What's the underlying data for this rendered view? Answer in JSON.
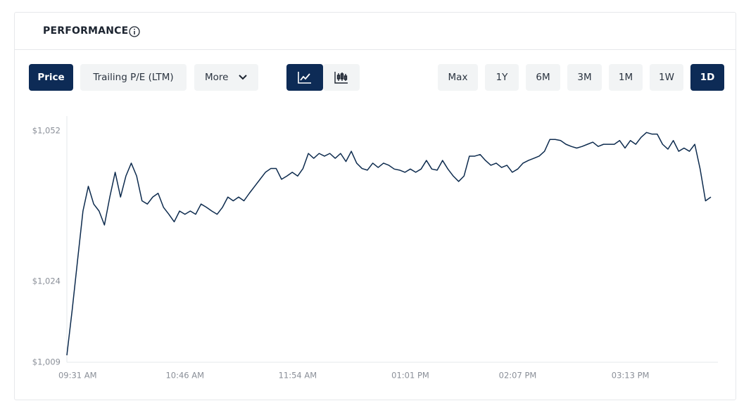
{
  "header": {
    "title": "PERFORMANCE"
  },
  "buttons": [
    "Price",
    "Trailing P/E (LTM)",
    "More"
  ],
  "ranges": [
    "Max",
    "1Y",
    "6M",
    "3M",
    "1M",
    "1W",
    "1D"
  ],
  "chart_data": {
    "type": "line",
    "color": "#0d2b4e",
    "ylim": [
      1009,
      1052
    ],
    "yticks": [
      {
        "value": 1052,
        "label": "$1,052"
      },
      {
        "value": 1024,
        "label": "$1,024"
      },
      {
        "value": 1009,
        "label": "$1,009"
      }
    ],
    "categories": [
      null,
      null,
      "09:31 AM",
      null,
      null,
      null,
      null,
      null,
      null,
      null,
      null,
      null,
      null,
      null,
      null,
      null,
      null,
      null,
      null,
      null,
      null,
      null,
      "10:46 AM",
      null,
      null,
      null,
      null,
      null,
      null,
      null,
      null,
      null,
      null,
      null,
      null,
      null,
      null,
      null,
      null,
      null,
      null,
      null,
      null,
      "11:54 AM",
      null,
      null,
      null,
      null,
      null,
      null,
      null,
      null,
      null,
      null,
      null,
      null,
      null,
      null,
      null,
      null,
      null,
      null,
      null,
      null,
      "01:01 PM",
      null,
      null,
      null,
      null,
      null,
      null,
      null,
      null,
      null,
      null,
      null,
      null,
      null,
      null,
      null,
      null,
      null,
      null,
      null,
      "02:07 PM",
      null,
      null,
      null,
      null,
      null,
      null,
      null,
      null,
      null,
      null,
      null,
      null,
      null,
      null,
      null,
      null,
      null,
      null,
      null,
      null,
      "03:13 PM",
      null,
      null,
      null,
      null,
      null,
      null,
      null,
      null,
      null,
      null,
      null,
      null,
      null,
      null,
      null
    ],
    "values": [
      1010.3,
      1018.8,
      1028,
      1037.1,
      1041.7,
      1038.4,
      1037.1,
      1034.5,
      1039.7,
      1044.3,
      1039.7,
      1043.6,
      1046,
      1043.6,
      1039,
      1038.4,
      1039.7,
      1040.4,
      1037.8,
      1036.5,
      1035.1,
      1037.1,
      1036.5,
      1037.1,
      1036.5,
      1038.4,
      1037.8,
      1037.1,
      1036.5,
      1037.8,
      1039.7,
      1039,
      1039.7,
      1039,
      1040.4,
      1041.7,
      1043,
      1044.3,
      1045,
      1045,
      1043,
      1043.6,
      1044.3,
      1043.6,
      1045,
      1047.8,
      1046.9,
      1047.8,
      1047.3,
      1047.8,
      1046.9,
      1047.8,
      1046.3,
      1048.2,
      1046,
      1045,
      1044.7,
      1046,
      1045.2,
      1046,
      1045.6,
      1044.9,
      1044.7,
      1044.3,
      1044.9,
      1044.3,
      1044.9,
      1046.5,
      1044.9,
      1044.7,
      1046.5,
      1044.9,
      1043.6,
      1042.6,
      1043.6,
      1047.3,
      1047.3,
      1047.6,
      1046.5,
      1045.6,
      1046,
      1045.2,
      1045.6,
      1044.3,
      1044.9,
      1046,
      1046.5,
      1046.9,
      1047.3,
      1048.2,
      1050.4,
      1050.4,
      1050.2,
      1049.5,
      1049.1,
      1048.8,
      1049.1,
      1049.5,
      1049.9,
      1049.1,
      1049.5,
      1049.5,
      1049.5,
      1050.2,
      1048.8,
      1050.2,
      1049.5,
      1050.8,
      1051.7,
      1051.4,
      1051.4,
      1049.5,
      1048.6,
      1050.2,
      1048.2,
      1048.8,
      1048.2,
      1049.5,
      1044.9,
      1039,
      1039.7
    ]
  }
}
